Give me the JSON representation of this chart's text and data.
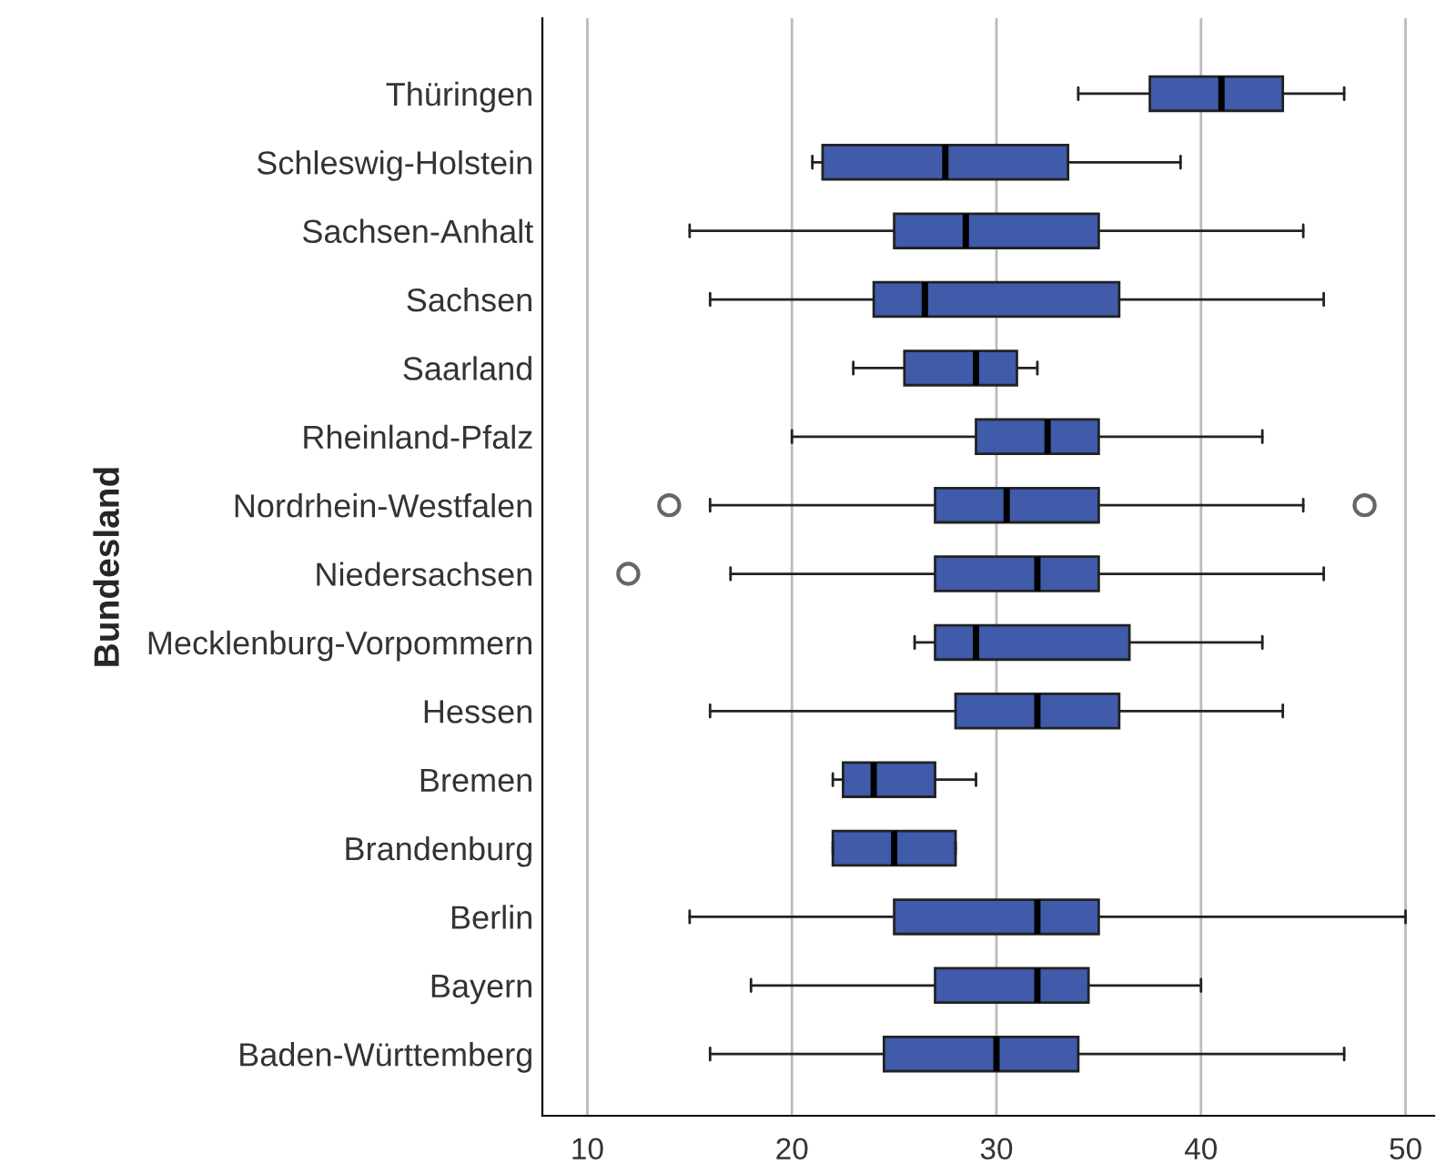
{
  "chart_data": {
    "type": "box",
    "orientation": "horizontal",
    "ylabel": "Bundesland",
    "categories": [
      "Thüringen",
      "Schleswig-Holstein",
      "Sachsen-Anhalt",
      "Sachsen",
      "Saarland",
      "Rheinland-Pfalz",
      "Nordrhein-Westfalen",
      "Niedersachsen",
      "Mecklenburg-Vorpommern",
      "Hessen",
      "Bremen",
      "Brandenburg",
      "Berlin",
      "Bayern",
      "Baden-Württemberg"
    ],
    "color": "#3f5ba9",
    "boxes": [
      {
        "low": 34,
        "q1": 37.5,
        "median": 41,
        "q3": 44,
        "high": 47
      },
      {
        "low": 21,
        "q1": 21.5,
        "median": 27.5,
        "q3": 33.5,
        "high": 39
      },
      {
        "low": 15,
        "q1": 25,
        "median": 28.5,
        "q3": 35,
        "high": 45
      },
      {
        "low": 16,
        "q1": 24,
        "median": 26.5,
        "q3": 36,
        "high": 46
      },
      {
        "low": 23,
        "q1": 25.5,
        "median": 29,
        "q3": 31,
        "high": 32
      },
      {
        "low": 20,
        "q1": 29,
        "median": 32.5,
        "q3": 35,
        "high": 43
      },
      {
        "low": 16,
        "q1": 27,
        "median": 30.5,
        "q3": 35,
        "high": 45,
        "outliers": [
          14,
          48
        ]
      },
      {
        "low": 17,
        "q1": 27,
        "median": 32,
        "q3": 35,
        "high": 46,
        "outliers": [
          12
        ]
      },
      {
        "low": 26,
        "q1": 27,
        "median": 29,
        "q3": 36.5,
        "high": 43
      },
      {
        "low": 16,
        "q1": 28,
        "median": 32,
        "q3": 36,
        "high": 44
      },
      {
        "low": 22,
        "q1": 22.5,
        "median": 24,
        "q3": 27,
        "high": 29
      },
      {
        "low": 22,
        "q1": 22,
        "median": 25,
        "q3": 28,
        "high": 28
      },
      {
        "low": 15,
        "q1": 25,
        "median": 32,
        "q3": 35,
        "high": 50
      },
      {
        "low": 18,
        "q1": 27,
        "median": 32,
        "q3": 34.5,
        "high": 40
      },
      {
        "low": 16,
        "q1": 24.5,
        "median": 30,
        "q3": 34,
        "high": 47
      }
    ],
    "xlim": [
      7.8,
      51.4
    ],
    "xticks": [
      10,
      20,
      30,
      40,
      50
    ],
    "grid": "x"
  }
}
